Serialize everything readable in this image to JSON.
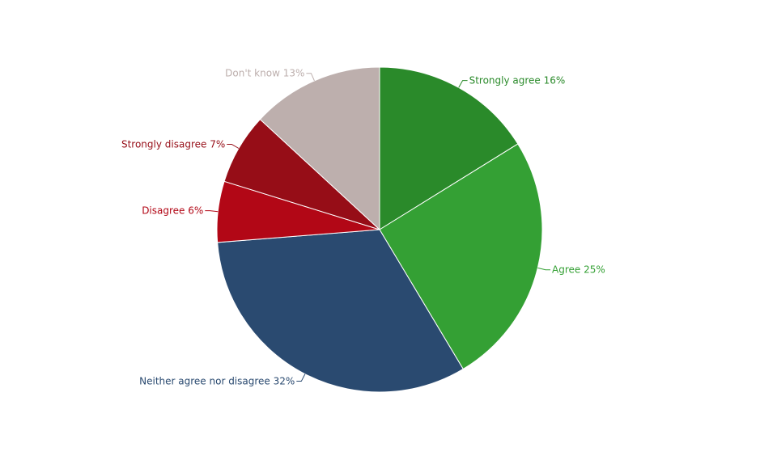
{
  "chart_data": {
    "type": "pie",
    "categories": [
      "Strongly agree",
      "Agree",
      "Neither agree nor disagree",
      "Disagree",
      "Strongly disagree",
      "Don't know"
    ],
    "values": [
      16,
      25,
      32,
      6,
      7,
      13
    ],
    "value_labels": [
      "16%",
      "25%",
      "32%",
      "6%",
      "7%",
      "13%"
    ],
    "colors": [
      "#2a8a2a",
      "#34a034",
      "#2a4a70",
      "#b20716",
      "#960d17",
      "#bdafad"
    ]
  }
}
